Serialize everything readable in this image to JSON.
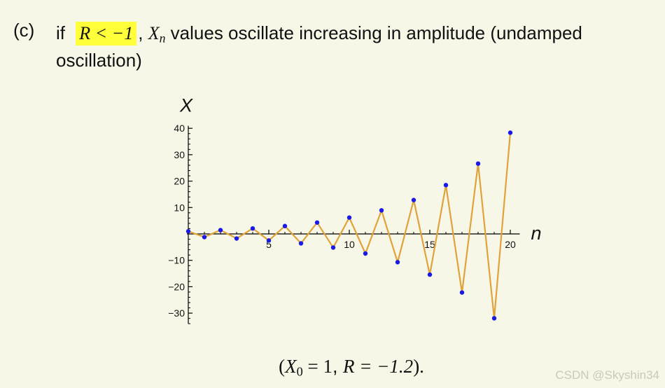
{
  "item": {
    "label": "(c)",
    "prefix": "if ",
    "condition": "R < −1",
    "comma1": ",",
    "xn_base": "X",
    "xn_sub": "n",
    "description_line1": "values oscillate increasing in amplitude (undamped",
    "description_line2": "oscillation)"
  },
  "caption": {
    "open": "(",
    "x0_base": "X",
    "x0_sub": "0",
    "x0_eq": " = 1",
    "comma": ", ",
    "r_eq": "R = −1.2",
    "close": ")."
  },
  "watermark": "CSDN @Skyshin34",
  "colors": {
    "background": "#f7f7e8",
    "highlight": "#ffff3a",
    "line": "#e0a33a",
    "points": "#1a1ae6",
    "axis": "#000000"
  },
  "chart_data": {
    "type": "line",
    "xlabel": "n",
    "ylabel": "X",
    "xlim": [
      0,
      20.5
    ],
    "ylim": [
      -34,
      42
    ],
    "xticks": [
      5,
      10,
      15,
      20
    ],
    "yticks": [
      40,
      30,
      20,
      10,
      -10,
      -20,
      -30
    ],
    "xtick_labels": [
      "5",
      "10",
      "15",
      "20"
    ],
    "ytick_labels": [
      "40",
      "30",
      "20",
      "10",
      "−10",
      "−20",
      "−30"
    ],
    "grid": false,
    "markers": true,
    "x": [
      0,
      1,
      2,
      3,
      4,
      5,
      6,
      7,
      8,
      9,
      10,
      11,
      12,
      13,
      14,
      15,
      16,
      17,
      18,
      19,
      20
    ],
    "y": [
      1,
      -1.2,
      1.44,
      -1.728,
      2.074,
      -2.488,
      2.986,
      -3.583,
      4.3,
      -5.16,
      6.192,
      -7.43,
      8.916,
      -10.699,
      12.839,
      -15.407,
      18.488,
      -22.186,
      26.623,
      -31.948,
      38.338
    ]
  }
}
